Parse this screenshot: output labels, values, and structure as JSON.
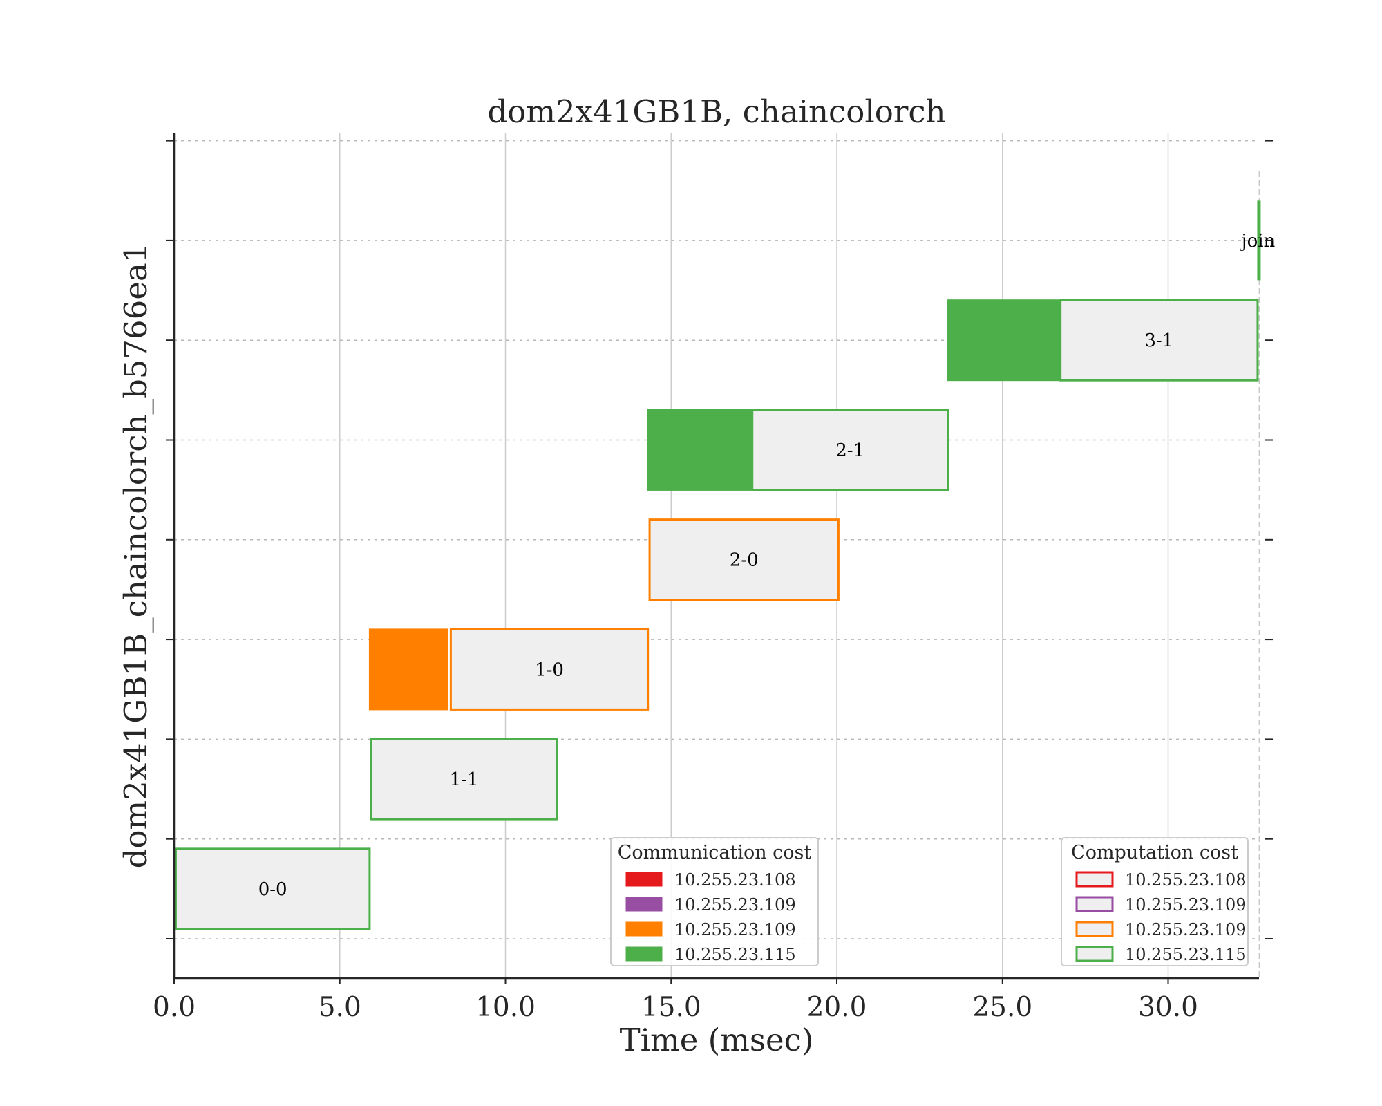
{
  "chart_data": {
    "type": "gantt",
    "title": "dom2x41GB1B, chaincolorch",
    "xlabel": "Time (msec)",
    "ylabel": "dom2x41GB1B_chaincolorch_b5766ea1",
    "xlim": [
      0,
      32.8
    ],
    "ylim": [
      -0.4,
      8.1
    ],
    "x_ticks": [
      "0.0",
      "5.0",
      "10.0",
      "15.0",
      "20.0",
      "25.0",
      "30.0"
    ],
    "x_tick_values": [
      0,
      5,
      10,
      15,
      20,
      25,
      30
    ],
    "y_tick_values": [
      0,
      1,
      2,
      3,
      4,
      5,
      6,
      7,
      8
    ],
    "grid": true,
    "end_marker_x": 32.75,
    "colors": {
      "comp_fill": "#efefef",
      "host_108": "#e41a1c",
      "host_109_purple": "#984ea3",
      "host_109_orange": "#ff7f00",
      "host_115": "#4daf4a"
    },
    "tasks": [
      {
        "label": "0-0",
        "row": 0.5,
        "comm_start": null,
        "comm_end": null,
        "comp_start": 0.05,
        "comp_end": 5.9,
        "color": "#4daf4a"
      },
      {
        "label": "1-1",
        "row": 1.6,
        "comm_start": null,
        "comm_end": null,
        "comp_start": 5.95,
        "comp_end": 11.55,
        "color": "#4daf4a"
      },
      {
        "label": "1-0",
        "row": 2.7,
        "comm_start": 5.9,
        "comm_end": 8.25,
        "comp_start": 8.35,
        "comp_end": 14.3,
        "color": "#ff7f00"
      },
      {
        "label": "2-0",
        "row": 3.8,
        "comm_start": null,
        "comm_end": null,
        "comp_start": 14.35,
        "comp_end": 20.05,
        "color": "#ff7f00"
      },
      {
        "label": "2-1",
        "row": 4.9,
        "comm_start": 14.3,
        "comm_end": 17.45,
        "comp_start": 17.45,
        "comp_end": 23.35,
        "color": "#4daf4a"
      },
      {
        "label": "3-1",
        "row": 6.0,
        "comm_start": 23.35,
        "comm_end": 26.75,
        "comp_start": 26.75,
        "comp_end": 32.7,
        "color": "#4daf4a"
      },
      {
        "label": "join",
        "row": 7.0,
        "comm_start": null,
        "comm_end": null,
        "comp_start": 32.72,
        "comp_end": 32.76,
        "color": "#4daf4a"
      }
    ],
    "legends": [
      {
        "title": "Communication cost",
        "placement": "lower-center",
        "style": "filled",
        "entries": [
          {
            "label": "10.255.23.108",
            "color": "#e41a1c"
          },
          {
            "label": "10.255.23.109",
            "color": "#984ea3"
          },
          {
            "label": "10.255.23.109",
            "color": "#ff7f00"
          },
          {
            "label": "10.255.23.115",
            "color": "#4daf4a"
          }
        ]
      },
      {
        "title": "Computation cost",
        "placement": "lower-right",
        "style": "outline",
        "entries": [
          {
            "label": "10.255.23.108",
            "color": "#e41a1c"
          },
          {
            "label": "10.255.23.109",
            "color": "#984ea3"
          },
          {
            "label": "10.255.23.109",
            "color": "#ff7f00"
          },
          {
            "label": "10.255.23.115",
            "color": "#4daf4a"
          }
        ]
      }
    ]
  }
}
